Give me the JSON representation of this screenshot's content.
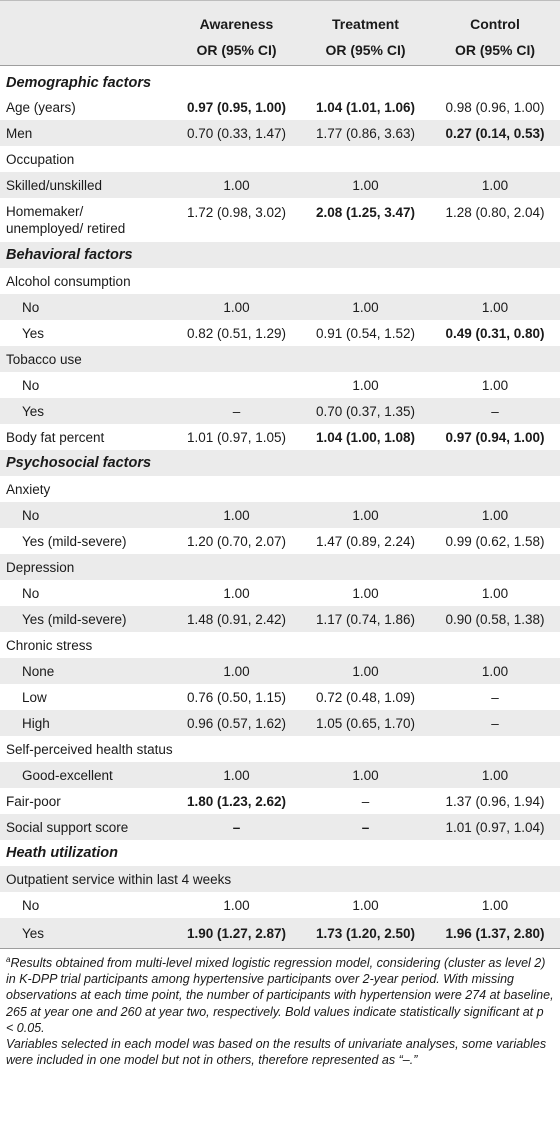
{
  "header": {
    "col1_line1": "Awareness",
    "col1_line2": "OR (95% CI)",
    "col2_line1": "Treatment",
    "col2_line2": "OR (95% CI)",
    "col3_line1": "Control",
    "col3_line2": "OR (95% CI)"
  },
  "rows": {
    "demo": "Demographic factors",
    "age": {
      "label": "Age (years)",
      "a": "0.97 (0.95, 1.00)",
      "t": "1.04 (1.01, 1.06)",
      "c": "0.98 (0.96, 1.00)"
    },
    "men": {
      "label": "Men",
      "a": "0.70 (0.33, 1.47)",
      "t": "1.77 (0.86, 3.63)",
      "c": "0.27 (0.14, 0.53)"
    },
    "occ": {
      "label": "Occupation"
    },
    "skilled": {
      "label": "Skilled/unskilled",
      "a": "1.00",
      "t": "1.00",
      "c": "1.00"
    },
    "homemaker": {
      "label1": "Homemaker/",
      "label2": "unemployed/ retired",
      "a": "1.72 (0.98, 3.02)",
      "t": "2.08 (1.25, 3.47)",
      "c": "1.28 (0.80, 2.04)"
    },
    "behav": "Behavioral factors",
    "alcohol": {
      "label": "Alcohol consumption"
    },
    "alc_no": {
      "label": "No",
      "a": "1.00",
      "t": "1.00",
      "c": "1.00"
    },
    "alc_yes": {
      "label": "Yes",
      "a": "0.82 (0.51, 1.29)",
      "t": "0.91 (0.54, 1.52)",
      "c": "0.49 (0.31, 0.80)"
    },
    "tobacco": {
      "label": "Tobacco use"
    },
    "tob_no": {
      "label": "No",
      "a": "",
      "t": "1.00",
      "c": "1.00"
    },
    "tob_yes": {
      "label": "Yes",
      "a": "–",
      "t": "0.70 (0.37, 1.35)",
      "c": "–"
    },
    "bodyfat": {
      "label": "Body fat percent",
      "a": "1.01 (0.97, 1.05)",
      "t": "1.04 (1.00, 1.08)",
      "c": "0.97 (0.94, 1.00)"
    },
    "psycho": "Psychosocial factors",
    "anxiety": {
      "label": "Anxiety"
    },
    "anx_no": {
      "label": "No",
      "a": "1.00",
      "t": "1.00",
      "c": "1.00"
    },
    "anx_yes": {
      "label": "Yes (mild-severe)",
      "a": "1.20 (0.70, 2.07)",
      "t": "1.47 (0.89, 2.24)",
      "c": "0.99 (0.62, 1.58)"
    },
    "depression": {
      "label": "Depression"
    },
    "dep_no": {
      "label": "No",
      "a": "1.00",
      "t": "1.00",
      "c": "1.00"
    },
    "dep_yes": {
      "label": "Yes (mild-severe)",
      "a": "1.48 (0.91, 2.42)",
      "t": "1.17 (0.74, 1.86)",
      "c": "0.90 (0.58, 1.38)"
    },
    "stress": {
      "label": "Chronic stress"
    },
    "st_none": {
      "label": "None",
      "a": "1.00",
      "t": "1.00",
      "c": "1.00"
    },
    "st_low": {
      "label": "Low",
      "a": "0.76 (0.50, 1.15)",
      "t": "0.72 (0.48, 1.09)",
      "c": "–"
    },
    "st_high": {
      "label": "High",
      "a": "0.96 (0.57, 1.62)",
      "t": "1.05 (0.65, 1.70)",
      "c": "–"
    },
    "health": {
      "label": "Self-perceived health status"
    },
    "good": {
      "label": "Good-excellent",
      "a": "1.00",
      "t": "1.00",
      "c": "1.00"
    },
    "fair": {
      "label": "Fair-poor",
      "a": "1.80 (1.23, 2.62)",
      "t": "–",
      "c": "1.37 (0.96, 1.94)"
    },
    "social": {
      "label": "Social support score",
      "a": "–",
      "t": "–",
      "c": "1.01 (0.97, 1.04)"
    },
    "util": "Heath utilization",
    "outpt": {
      "label": "Outpatient service within last 4 weeks"
    },
    "out_no": {
      "label": "No",
      "a": "1.00",
      "t": "1.00",
      "c": "1.00"
    },
    "out_yes": {
      "label": "Yes",
      "a": "1.90 (1.27, 2.87)",
      "t": "1.73 (1.20, 2.50)",
      "c": "1.96 (1.37, 2.80)"
    }
  },
  "footnote": {
    "sup": "a",
    "text1": "Results obtained from multi-level mixed logistic regression model, considering (cluster as level 2) in K-DPP trial participants among hypertensive participants over 2-year period. With missing observations at each time point, the number of participants with hypertension were 274 at baseline, 265 at year one and 260 at year two, respectively. Bold values indicate statistically significant at p < 0.05.",
    "text2": "Variables selected in each model was based on the results of univariate analyses, some variables were included in one model but not in others, therefore represented as “–.”"
  }
}
